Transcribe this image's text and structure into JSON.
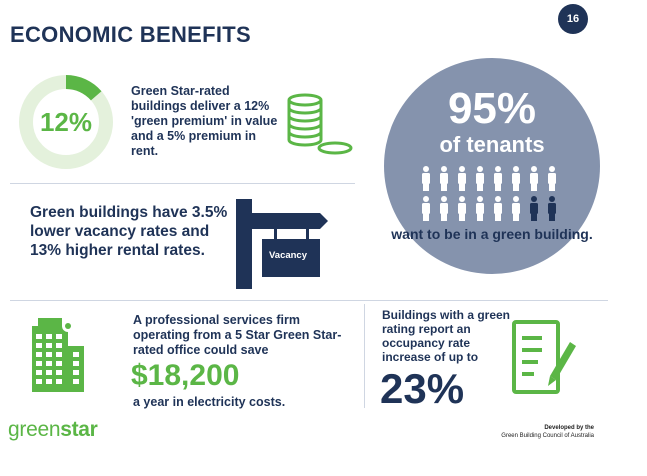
{
  "page_number": "16",
  "title": "ECONOMIC BENEFITS",
  "premium": {
    "percent": "12%",
    "text": "Green Star-rated buildings deliver a 12% 'green premium' in value and a 5% premium in rent."
  },
  "tenants": {
    "percent": "95%",
    "label": "of tenants",
    "statement": "want to be in a green building."
  },
  "vacancy": {
    "text": "Green buildings have 3.5% lower vacancy rates and 13% higher rental rates.",
    "sign_label": "Vacancy"
  },
  "savings": {
    "intro": "A professional services firm operating from a 5 Star Green Star-rated office could save",
    "amount": "$18,200",
    "suffix": "a year in electricity costs."
  },
  "occupancy": {
    "text": "Buildings with a green rating report an occupancy rate increase of up to",
    "percent": "23%"
  },
  "logo": {
    "part1": "green",
    "part2": "star"
  },
  "credit": {
    "line1": "Developed by the",
    "line2": "Green Building Council of Australia"
  },
  "colors": {
    "navy": "#1f3357",
    "green": "#5bb646",
    "slate": "#8593ad"
  }
}
